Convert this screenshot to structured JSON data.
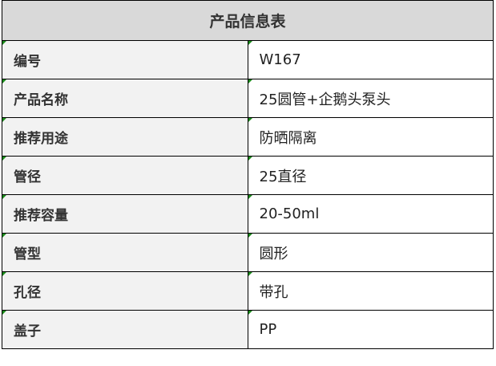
{
  "title": "产品信息表",
  "rows": [
    {
      "label": "编号",
      "value": "W167"
    },
    {
      "label": "产品名称",
      "value": "25圆管+企鹅头泵头"
    },
    {
      "label": "推荐用途",
      "value": "防晒隔离"
    },
    {
      "label": "管径",
      "value": "25直径"
    },
    {
      "label": "推荐容量",
      "value": "20-50ml"
    },
    {
      "label": "管型",
      "value": "圆形"
    },
    {
      "label": "孔径",
      "value": "带孔"
    },
    {
      "label": "盖子",
      "value": "PP"
    }
  ]
}
